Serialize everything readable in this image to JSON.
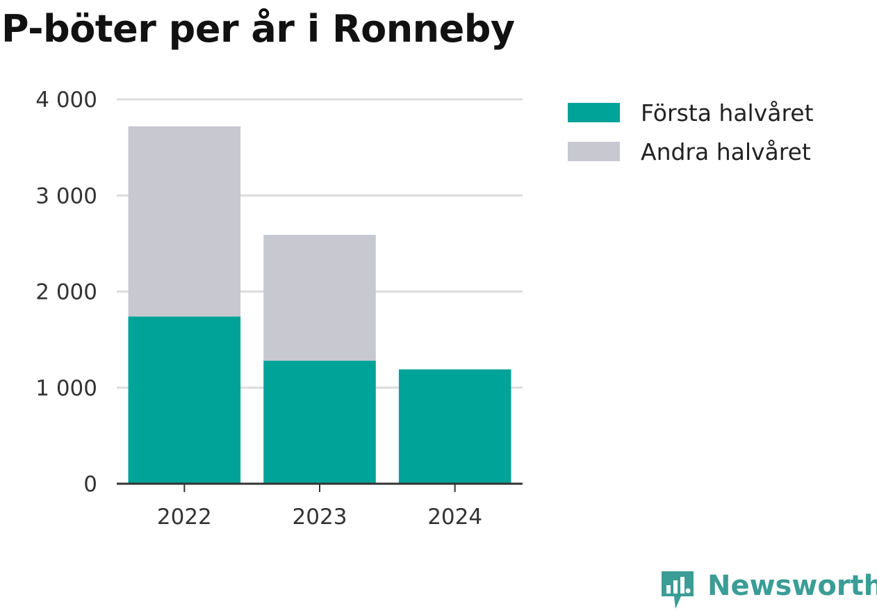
{
  "chart_data": {
    "type": "bar",
    "stacked": true,
    "title": "P-böter per år i Ronneby",
    "categories": [
      "2022",
      "2023",
      "2024"
    ],
    "series": [
      {
        "name": "Första halvåret",
        "values": [
          1740,
          1280,
          1190
        ],
        "color": "#00a398"
      },
      {
        "name": "Andra halvåret",
        "values": [
          1980,
          1310,
          0
        ],
        "color": "#c8c8d0"
      }
    ],
    "ylim": [
      0,
      4000
    ],
    "yticks": [
      0,
      1000,
      2000,
      3000,
      4000
    ],
    "ytick_labels": [
      "0",
      "1 000",
      "2 000",
      "3 000",
      "4 000"
    ],
    "grid": true,
    "legend_position": "right"
  },
  "branding": {
    "logo_text": "Newsworthy",
    "logo_icon": "chart-speech-bubble-icon",
    "logo_color": "#3a9d96"
  }
}
